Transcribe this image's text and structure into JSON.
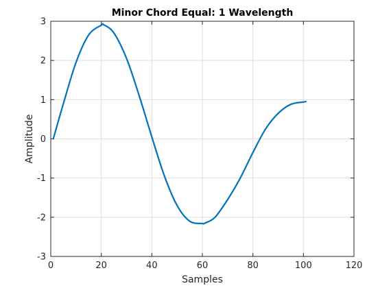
{
  "chart_data": {
    "type": "line",
    "title": "Minor Chord Equal: 1 Wavelength",
    "xlabel": "Samples",
    "ylabel": "Amplitude",
    "xlim": [
      0,
      120
    ],
    "ylim": [
      -3,
      3
    ],
    "xticks": [
      0,
      20,
      40,
      60,
      80,
      100,
      120
    ],
    "yticks": [
      -3,
      -2,
      -1,
      0,
      1,
      2,
      3
    ],
    "grid": true,
    "series": [
      {
        "color": "#0072BD",
        "x": [
          1,
          5,
          10,
          15,
          20,
          21,
          25,
          30,
          35,
          40,
          45,
          50,
          55,
          60,
          61,
          65,
          70,
          75,
          80,
          85,
          90,
          95,
          100,
          101
        ],
        "y": [
          0,
          0.9,
          1.95,
          2.65,
          2.9,
          2.91,
          2.7,
          2.05,
          1.1,
          0.05,
          -0.95,
          -1.7,
          -2.1,
          -2.16,
          -2.15,
          -2.0,
          -1.55,
          -1.0,
          -0.35,
          0.25,
          0.65,
          0.88,
          0.94,
          0.95
        ]
      }
    ]
  }
}
